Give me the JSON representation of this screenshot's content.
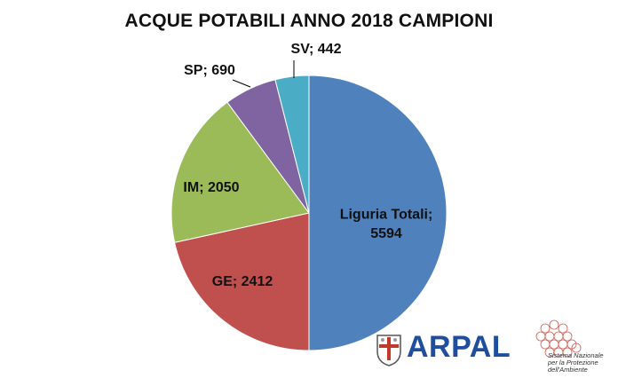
{
  "chart_data": {
    "type": "pie",
    "title": "ACQUE POTABILI ANNO 2018 CAMPIONI",
    "slices": [
      {
        "name": "Liguria Totali",
        "value": 5594,
        "label": "Liguria Totali;\n5594",
        "color": "#4f81bd"
      },
      {
        "name": "GE",
        "value": 2412,
        "label": "GE; 2412",
        "color": "#c0504d"
      },
      {
        "name": "IM",
        "value": 2050,
        "label": "IM; 2050",
        "color": "#9bbb59"
      },
      {
        "name": "SP",
        "value": 690,
        "label": "SP; 690",
        "color": "#8064a2"
      },
      {
        "name": "SV",
        "value": 442,
        "label": "SV; 442",
        "color": "#4bacc6"
      }
    ]
  },
  "logos": {
    "arpal": "ARPAL",
    "snpa_line1": "Sistema Nazionale",
    "snpa_line2": "per la Protezione",
    "snpa_line3": "dell'Ambiente"
  },
  "icons": {
    "arpal_emblem": "liguria-shield-icon",
    "snpa_emblem": "hexagon-network-icon"
  }
}
